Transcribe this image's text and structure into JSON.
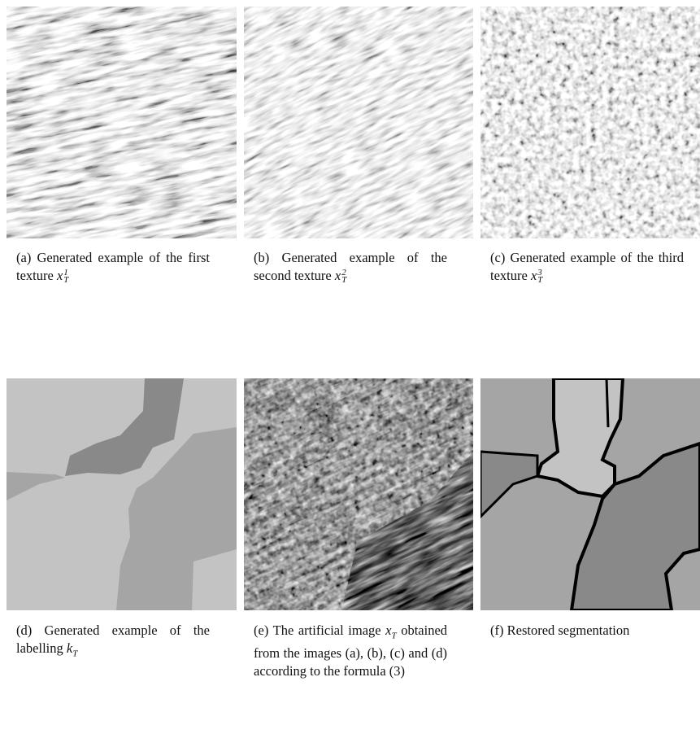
{
  "figure": {
    "captions": [
      {
        "label": "(a)",
        "text": "Generated example of the first texture",
        "math": {
          "base": "x",
          "sub": "T",
          "sup": "1"
        }
      },
      {
        "label": "(b)",
        "text": "Generated example of the second texture",
        "math": {
          "base": "x",
          "sub": "T",
          "sup": "2"
        }
      },
      {
        "label": "(c)",
        "text": "Generated example of the third texture",
        "math": {
          "base": "x",
          "sub": "T",
          "sup": "3"
        }
      },
      {
        "label": "(d)",
        "text": "Generated example of the labelling",
        "math": {
          "base": "k",
          "sub": "T"
        }
      },
      {
        "label": "(e)",
        "text": "The artificial image",
        "math": {
          "base": "x",
          "sub": "T"
        },
        "text_after": "obtained from the images (a), (b), (c) and (d) according to the formula (3)"
      },
      {
        "label": "(f)",
        "text": "Restored segmentation"
      }
    ]
  }
}
